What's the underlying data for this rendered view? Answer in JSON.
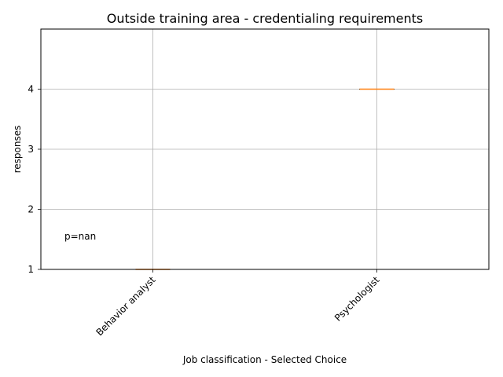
{
  "chart_data": {
    "type": "box",
    "title": "Outside training area - credentialing requirements",
    "xlabel": "Job classification - Selected Choice",
    "ylabel": "responses",
    "categories": [
      "Behavior analyst",
      "Psychologist"
    ],
    "boxes": [
      {
        "category": "Behavior analyst",
        "median": 1,
        "q1": 1,
        "q3": 1,
        "whisker_low": 1,
        "whisker_high": 1
      },
      {
        "category": "Psychologist",
        "median": 4,
        "q1": 4,
        "q3": 4,
        "whisker_low": 4,
        "whisker_high": 4
      }
    ],
    "ylim": [
      1,
      5
    ],
    "yticks": [
      1,
      2,
      3,
      4
    ],
    "grid": true,
    "annotation": "p=nan",
    "colors": {
      "box": "#000000",
      "median": "#ff7f0e",
      "grid": "#b0b0b0"
    }
  }
}
